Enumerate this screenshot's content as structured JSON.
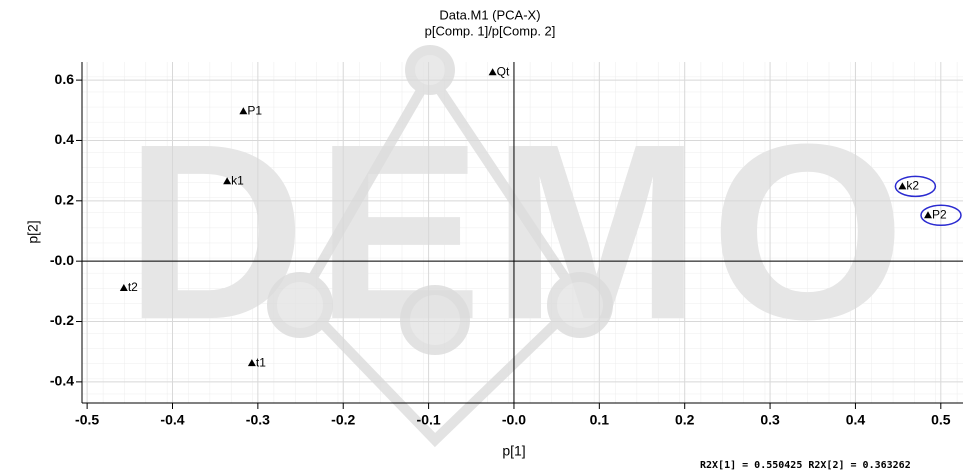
{
  "chart_data": {
    "type": "scatter",
    "title": "Data.M1 (PCA-X)",
    "subtitle": "p[Comp. 1]/p[Comp. 2]",
    "x_label": "p[1]",
    "y_label": "p[2]",
    "watermark": "DEMO",
    "annotation": "R2X[1] = 0.550425 R2X[2] = 0.363262",
    "point_labels": [
      "Qt",
      "P1",
      "k1",
      "t2",
      "t1",
      "k2",
      "P2"
    ],
    "x": [
      -0.025,
      -0.317,
      -0.336,
      -0.457,
      -0.307,
      0.455,
      0.485
    ],
    "values": [
      0.626,
      0.497,
      0.265,
      -0.089,
      -0.338,
      0.248,
      0.152
    ],
    "highlighted": [
      false,
      false,
      false,
      false,
      false,
      true,
      true
    ],
    "color": "#000000",
    "highlight_color": "#2a2ad0",
    "xlim": [
      -0.506,
      0.526
    ],
    "ylim": [
      -0.47,
      0.66
    ],
    "xticks": [
      -0.5,
      -0.4,
      -0.3,
      -0.2,
      -0.1,
      {
        "value": 0,
        "label": "-0.0"
      },
      0.1,
      0.2,
      0.3,
      0.4,
      0.5
    ],
    "yticks": [
      0.6,
      0.4,
      0.2,
      {
        "value": 0,
        "label": "-0.0"
      },
      -0.2,
      -0.4
    ],
    "grid": true,
    "zero_lines": true
  }
}
